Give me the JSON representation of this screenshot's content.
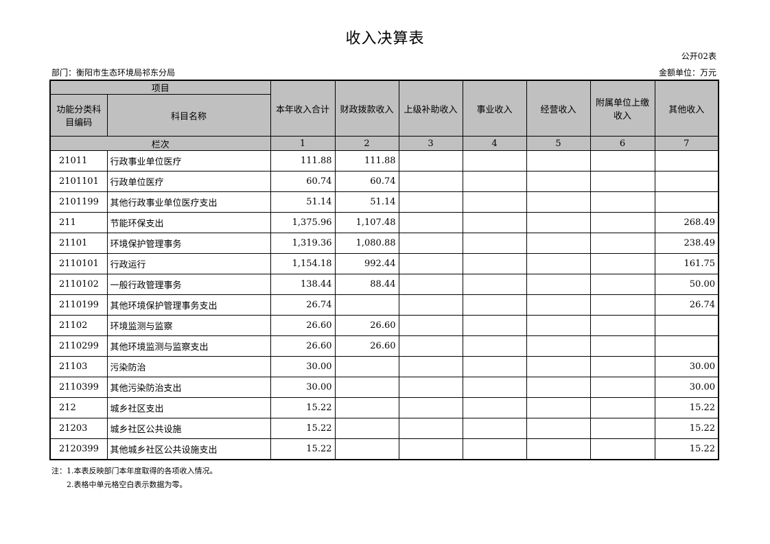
{
  "title": "收入决算表",
  "table_code": "公开02表",
  "department": "部门：衡阳市生态环境局祁东分局",
  "unit": "金额单位：万元",
  "headers": {
    "item": "项目",
    "code": "功能分类科目编码",
    "name": "科目名称",
    "cols": [
      "本年收入合计",
      "财政拨款收入",
      "上级补助收入",
      "事业收入",
      "经营收入",
      "附属单位上缴收入",
      "其他收入"
    ],
    "row_index_label": "栏次",
    "col_numbers": [
      "1",
      "2",
      "3",
      "4",
      "5",
      "6",
      "7"
    ]
  },
  "rows": [
    {
      "code": "21011",
      "name": "行政事业单位医疗",
      "v": [
        "111.88",
        "111.88",
        "",
        "",
        "",
        "",
        ""
      ]
    },
    {
      "code": "2101101",
      "name": "行政单位医疗",
      "v": [
        "60.74",
        "60.74",
        "",
        "",
        "",
        "",
        ""
      ]
    },
    {
      "code": "2101199",
      "name": "其他行政事业单位医疗支出",
      "v": [
        "51.14",
        "51.14",
        "",
        "",
        "",
        "",
        ""
      ]
    },
    {
      "code": "211",
      "name": "节能环保支出",
      "v": [
        "1,375.96",
        "1,107.48",
        "",
        "",
        "",
        "",
        "268.49"
      ]
    },
    {
      "code": "21101",
      "name": "环境保护管理事务",
      "v": [
        "1,319.36",
        "1,080.88",
        "",
        "",
        "",
        "",
        "238.49"
      ]
    },
    {
      "code": "2110101",
      "name": "行政运行",
      "v": [
        "1,154.18",
        "992.44",
        "",
        "",
        "",
        "",
        "161.75"
      ]
    },
    {
      "code": "2110102",
      "name": "一般行政管理事务",
      "v": [
        "138.44",
        "88.44",
        "",
        "",
        "",
        "",
        "50.00"
      ]
    },
    {
      "code": "2110199",
      "name": "其他环境保护管理事务支出",
      "v": [
        "26.74",
        "",
        "",
        "",
        "",
        "",
        "26.74"
      ]
    },
    {
      "code": "21102",
      "name": "环境监测与监察",
      "v": [
        "26.60",
        "26.60",
        "",
        "",
        "",
        "",
        ""
      ]
    },
    {
      "code": "2110299",
      "name": "其他环境监测与监察支出",
      "v": [
        "26.60",
        "26.60",
        "",
        "",
        "",
        "",
        ""
      ]
    },
    {
      "code": "21103",
      "name": "污染防治",
      "v": [
        "30.00",
        "",
        "",
        "",
        "",
        "",
        "30.00"
      ]
    },
    {
      "code": "2110399",
      "name": "其他污染防治支出",
      "v": [
        "30.00",
        "",
        "",
        "",
        "",
        "",
        "30.00"
      ]
    },
    {
      "code": "212",
      "name": "城乡社区支出",
      "v": [
        "15.22",
        "",
        "",
        "",
        "",
        "",
        "15.22"
      ]
    },
    {
      "code": "21203",
      "name": "城乡社区公共设施",
      "v": [
        "15.22",
        "",
        "",
        "",
        "",
        "",
        "15.22"
      ]
    },
    {
      "code": "2120399",
      "name": "其他城乡社区公共设施支出",
      "v": [
        "15.22",
        "",
        "",
        "",
        "",
        "",
        "15.22"
      ]
    }
  ],
  "notes": [
    "注：1.本表反映部门本年度取得的各项收入情况。",
    "2.表格中单元格空白表示数据为零。"
  ]
}
